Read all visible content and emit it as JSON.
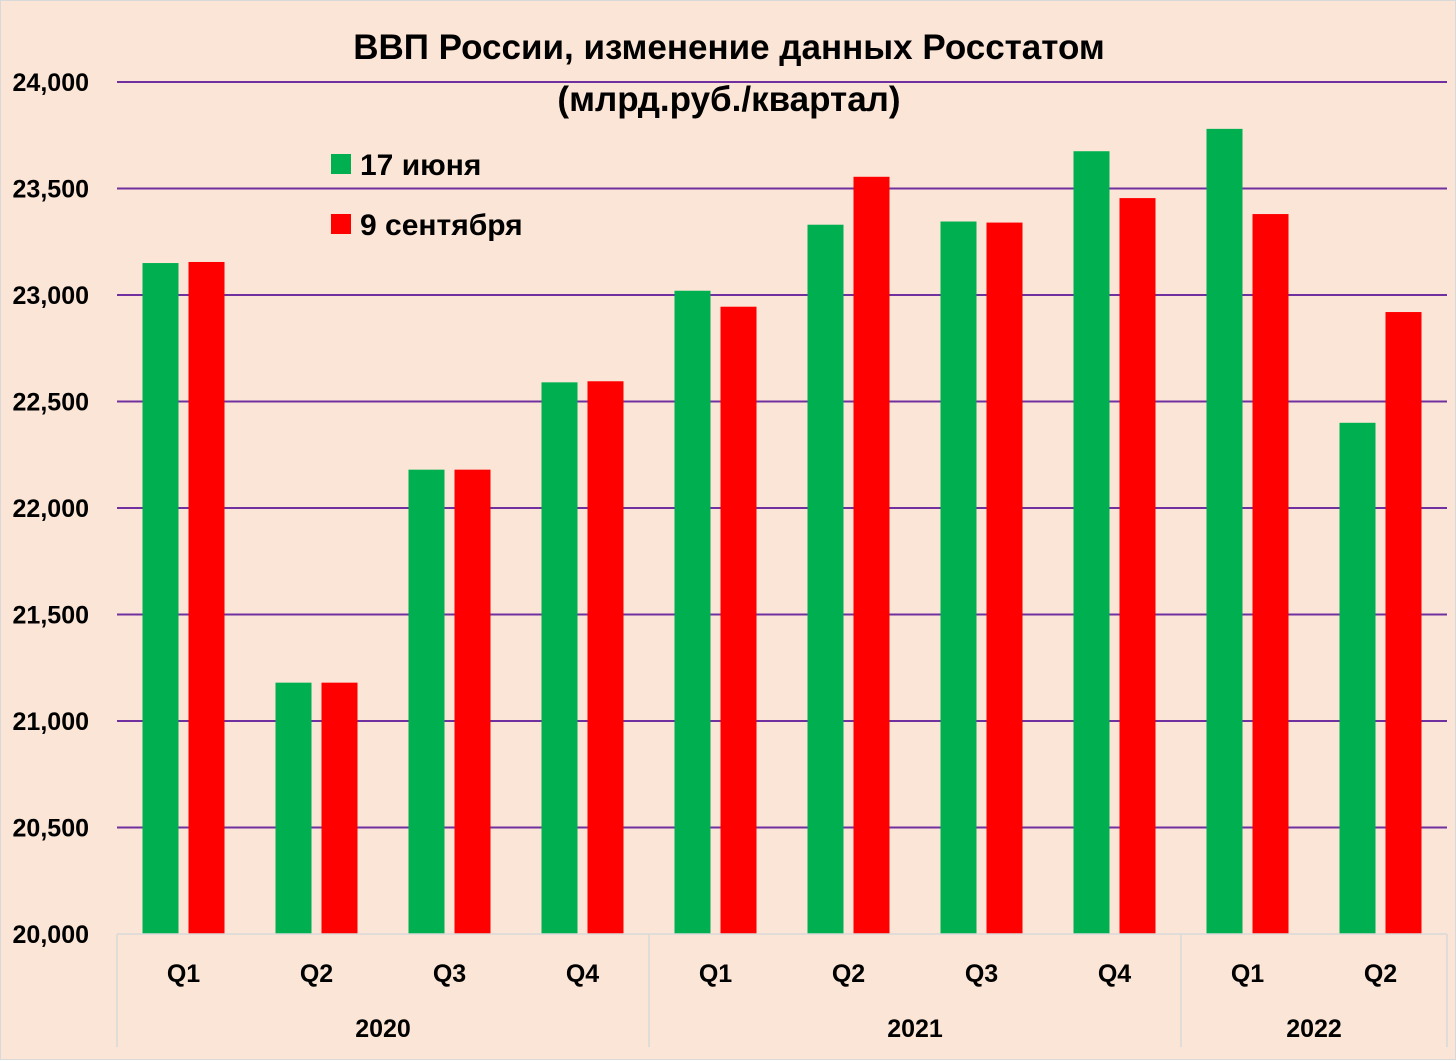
{
  "chart_data": {
    "type": "bar",
    "title": "ВВП России, изменение данных Росстатом",
    "subtitle": "(млрд.руб./квартал)",
    "xlabel": "",
    "ylabel": "",
    "ylim": [
      20000,
      24000
    ],
    "yticks": [
      20000,
      20500,
      21000,
      21500,
      22000,
      22500,
      23000,
      23500,
      24000
    ],
    "ytick_labels": [
      "20,000",
      "20,500",
      "21,000",
      "21,500",
      "22,000",
      "22,500",
      "23,000",
      "23,500",
      "24,000"
    ],
    "categories": [
      "Q1",
      "Q2",
      "Q3",
      "Q4",
      "Q1",
      "Q2",
      "Q3",
      "Q4",
      "Q1",
      "Q2"
    ],
    "groups": [
      {
        "label": "2020",
        "span": 4
      },
      {
        "label": "2021",
        "span": 4
      },
      {
        "label": "2022",
        "span": 2
      }
    ],
    "series": [
      {
        "name": "17 июня",
        "color": "#00b050",
        "values": [
          23150,
          21180,
          22180,
          22590,
          23020,
          23330,
          23345,
          23675,
          23780,
          22400
        ]
      },
      {
        "name": "9 сентября",
        "color": "#ff0000",
        "values": [
          23155,
          21180,
          22180,
          22595,
          22945,
          23555,
          23340,
          23455,
          23380,
          22920
        ]
      }
    ],
    "grid": true,
    "grid_color": "#7030a0",
    "legend_position": "top-left"
  }
}
